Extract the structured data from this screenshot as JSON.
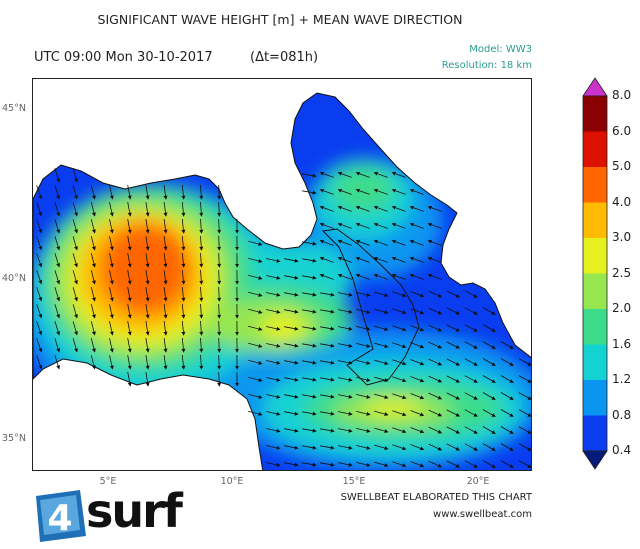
{
  "header": {
    "title": "SIGNIFICANT WAVE HEIGHT [m] + MEAN WAVE DIRECTION",
    "time": "UTC 09:00 Mon 30-10-2017",
    "delta": "(Δt=081h)",
    "model": "Model: WW3",
    "resolution": "Resolution: 18 km"
  },
  "map": {
    "lat_labels": [
      "45°N",
      "40°N",
      "35°N"
    ],
    "lon_labels": [
      "5°E",
      "10°E",
      "15°E",
      "20°E"
    ],
    "land_color": "#ffffff",
    "coast_color": "#111111"
  },
  "colorbar": {
    "labels": [
      "8.0",
      "6.0",
      "5.0",
      "4.0",
      "3.0",
      "2.5",
      "2.0",
      "1.6",
      "1.2",
      "0.8",
      "0.4"
    ],
    "colors": [
      "#8b0000",
      "#dd1100",
      "#ff6600",
      "#ffbb00",
      "#e6f01e",
      "#96e650",
      "#3cdc8c",
      "#14d2d2",
      "#0a96f0",
      "#0a3cf0"
    ],
    "top_color": "#cc33cc",
    "bottom_color": "#061a7a"
  },
  "footer": {
    "credit": "SWELLBEAT ELABORATED THIS CHART",
    "website": "www.swellbeat.com",
    "logo_text": "surf",
    "logo_mark": "4"
  }
}
